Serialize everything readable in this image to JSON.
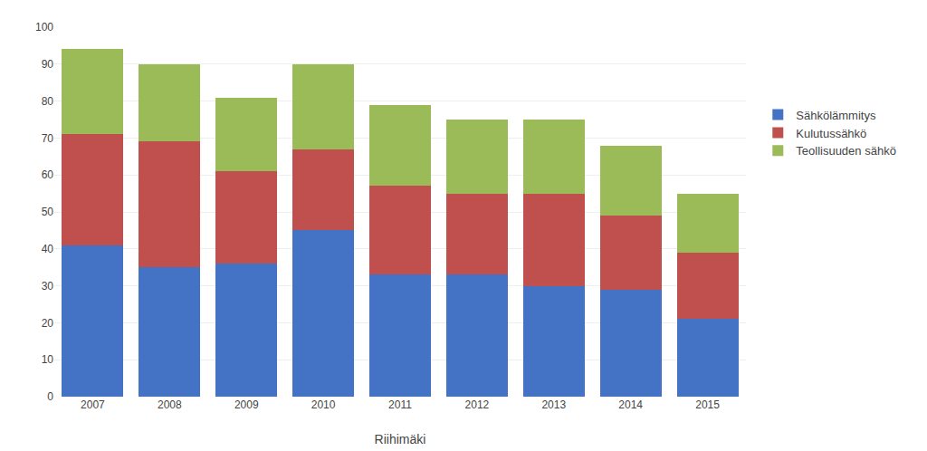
{
  "chart_data": {
    "type": "bar",
    "xlabel": "Riihimäki",
    "categories": [
      "2007",
      "2008",
      "2009",
      "2010",
      "2011",
      "2012",
      "2013",
      "2014",
      "2015"
    ],
    "series": [
      {
        "name": "Sähkölämmitys",
        "color": "#4472C4",
        "values": [
          41,
          35,
          36,
          45,
          33,
          33,
          30,
          29,
          21
        ]
      },
      {
        "name": "Kulutussähkö",
        "color": "#C0504D",
        "values": [
          30,
          34,
          25,
          22,
          24,
          22,
          25,
          20,
          18
        ]
      },
      {
        "name": "Teollisuuden sähkö",
        "color": "#9BBB59",
        "values": [
          23,
          21,
          20,
          23,
          22,
          20,
          20,
          19,
          16
        ]
      }
    ],
    "stacked": true,
    "ylim": [
      0,
      100
    ],
    "yticks": [
      0,
      10,
      20,
      30,
      40,
      50,
      60,
      70,
      80,
      90,
      100
    ],
    "grid": true,
    "legend": "right"
  }
}
